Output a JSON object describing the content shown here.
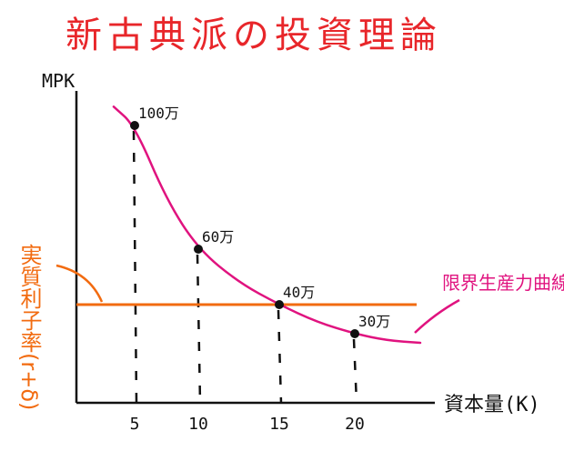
{
  "chart_data": {
    "type": "line",
    "title": "新古典派の投資理論",
    "xlabel": "資本量(K)",
    "ylabel": "MPK",
    "x_ticks": [
      "5",
      "10",
      "15",
      "20"
    ],
    "xlim": [
      0,
      25
    ],
    "ylim": [
      0,
      120
    ],
    "grid": false,
    "curve_label": "限界生産力曲線",
    "points": [
      {
        "x": 5,
        "y": 100,
        "label": "100万"
      },
      {
        "x": 10,
        "y": 60,
        "label": "60万"
      },
      {
        "x": 15,
        "y": 40,
        "label": "40万"
      },
      {
        "x": 20,
        "y": 30,
        "label": "30万"
      }
    ],
    "curve": [
      {
        "x": 3.2,
        "y": 118
      },
      {
        "x": 5,
        "y": 100
      },
      {
        "x": 7.5,
        "y": 76
      },
      {
        "x": 10,
        "y": 60
      },
      {
        "x": 12.5,
        "y": 48
      },
      {
        "x": 15,
        "y": 40
      },
      {
        "x": 17.5,
        "y": 34
      },
      {
        "x": 20,
        "y": 30
      },
      {
        "x": 22,
        "y": 27
      },
      {
        "x": 24,
        "y": 26
      }
    ],
    "interest_rate_line": {
      "y": 40,
      "label": "実質利子率(r+δ)",
      "color": "#f26b10"
    },
    "curve_color": "#e0137f"
  }
}
